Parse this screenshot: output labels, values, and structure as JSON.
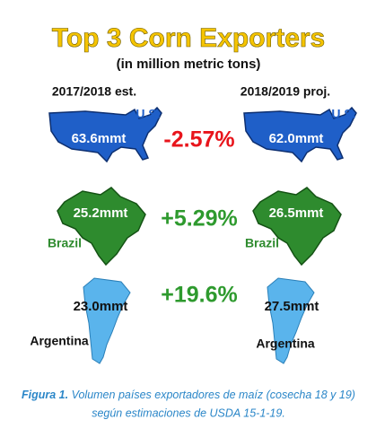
{
  "header": {
    "title": "Top 3 Corn Exporters",
    "subtitle": "(in million metric tons)"
  },
  "columns": [
    "2017/2018 est.",
    "2018/2019 proj."
  ],
  "rows": [
    {
      "country": "U.S.",
      "values": [
        "63.6mmt",
        "62.0mmt"
      ],
      "change": "-2.57%",
      "change_color": "#e8141b",
      "country_color": "#1f5fc8",
      "value_color": "#ffffff"
    },
    {
      "country": "Brazil",
      "values": [
        "25.2mmt",
        "26.5mmt"
      ],
      "change": "+5.29%",
      "change_color": "#2e9a2e",
      "country_color": "#2e8b2e",
      "value_color": "#ffffff"
    },
    {
      "country": "Argentina",
      "values": [
        "23.0mmt",
        "27.5mmt"
      ],
      "change": "+19.6%",
      "change_color": "#2e9a2e",
      "country_color": "#111111",
      "value_color": "#111111"
    }
  ],
  "caption": {
    "label": "Figura 1.",
    "line1": "Volumen países exportadores de maíz (cosecha 18 y 19)",
    "line2": "según estimaciones de USDA 15-1-19."
  }
}
